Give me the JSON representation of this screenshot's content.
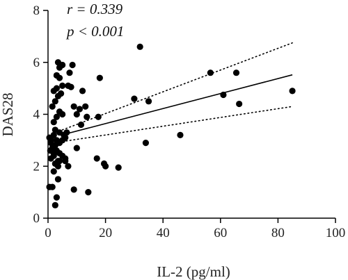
{
  "chart_data": {
    "type": "scatter",
    "title": "",
    "xlabel": "IL-2 (pg/ml)",
    "ylabel": "DAS28",
    "xlim": [
      0,
      100
    ],
    "ylim": [
      0,
      8
    ],
    "xticks": [
      "0",
      "20",
      "40",
      "60",
      "80",
      "100"
    ],
    "yticks": [
      "0",
      "2",
      "4",
      "6",
      "8"
    ],
    "annotations": [
      "r = 0.339",
      "p < 0.001"
    ],
    "grid": false,
    "colors": {
      "points": "#000000",
      "fit_line": "#000000",
      "axes": "#000000"
    },
    "points": [
      [
        0.5,
        1.2
      ],
      [
        1.5,
        1.2
      ],
      [
        2.5,
        0.5
      ],
      [
        3.0,
        0.8
      ],
      [
        3.5,
        1.5
      ],
      [
        2.0,
        1.8
      ],
      [
        3.5,
        2.0
      ],
      [
        1.0,
        2.3
      ],
      [
        0.8,
        2.6
      ],
      [
        2.0,
        2.5
      ],
      [
        1.5,
        2.7
      ],
      [
        2.5,
        2.8
      ],
      [
        3.0,
        2.6
      ],
      [
        4.0,
        2.5
      ],
      [
        5.0,
        2.4
      ],
      [
        6.0,
        2.3
      ],
      [
        1.2,
        3.0
      ],
      [
        2.0,
        3.2
      ],
      [
        3.0,
        3.0
      ],
      [
        4.0,
        2.9
      ],
      [
        5.0,
        3.0
      ],
      [
        6.0,
        3.1
      ],
      [
        0.5,
        3.1
      ],
      [
        2.5,
        3.4
      ],
      [
        4.0,
        3.3
      ],
      [
        5.5,
        3.2
      ],
      [
        6.5,
        3.3
      ],
      [
        2.0,
        3.7
      ],
      [
        3.0,
        3.9
      ],
      [
        4.0,
        4.1
      ],
      [
        5.0,
        4.0
      ],
      [
        1.5,
        4.3
      ],
      [
        2.5,
        4.5
      ],
      [
        3.5,
        4.7
      ],
      [
        4.5,
        4.8
      ],
      [
        2.0,
        4.9
      ],
      [
        3.0,
        5.0
      ],
      [
        5.0,
        5.1
      ],
      [
        4.0,
        5.4
      ],
      [
        3.0,
        5.5
      ],
      [
        4.0,
        5.8
      ],
      [
        5.0,
        5.9
      ],
      [
        3.5,
        6.0
      ],
      [
        7.0,
        5.1
      ],
      [
        8.0,
        5.05
      ],
      [
        8.5,
        5.9
      ],
      [
        7.5,
        5.6
      ],
      [
        9.0,
        4.3
      ],
      [
        10.0,
        4.0
      ],
      [
        11.0,
        4.2
      ],
      [
        12.0,
        4.9
      ],
      [
        13.0,
        4.3
      ],
      [
        11.5,
        3.6
      ],
      [
        13.5,
        3.9
      ],
      [
        10.0,
        2.7
      ],
      [
        4.0,
        2.2
      ],
      [
        2.5,
        2.1
      ],
      [
        3.5,
        2.2
      ],
      [
        6.0,
        2.2
      ],
      [
        1.0,
        2.9
      ],
      [
        2.0,
        2.4
      ],
      [
        7.0,
        2.0
      ],
      [
        9.0,
        1.1
      ],
      [
        14.0,
        1.0
      ],
      [
        17.0,
        2.3
      ],
      [
        19.5,
        2.1
      ],
      [
        20.0,
        2.0
      ],
      [
        24.5,
        1.95
      ],
      [
        17.5,
        3.9
      ],
      [
        18.0,
        5.4
      ],
      [
        30.0,
        4.6
      ],
      [
        32.0,
        6.6
      ],
      [
        34.0,
        2.9
      ],
      [
        35.0,
        4.5
      ],
      [
        46.0,
        3.2
      ],
      [
        56.5,
        5.6
      ],
      [
        61.0,
        4.75
      ],
      [
        65.5,
        5.6
      ],
      [
        66.5,
        4.4
      ],
      [
        85.0,
        4.9
      ]
    ],
    "fit": {
      "x": [
        5,
        85
      ],
      "y": [
        3.21,
        5.52
      ]
    },
    "ci_upper": {
      "x": [
        5,
        85
      ],
      "y": [
        3.4,
        6.75
      ]
    },
    "ci_lower": {
      "x": [
        5,
        85
      ],
      "y": [
        2.95,
        4.3
      ]
    }
  }
}
